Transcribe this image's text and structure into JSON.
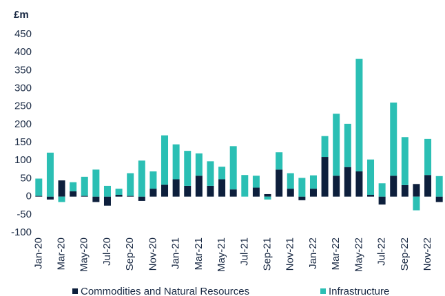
{
  "chart_data": {
    "type": "stacked_bar",
    "y_axis_label": "£m",
    "categories": [
      "Jan-20",
      null,
      "Mar-20",
      null,
      "May-20",
      null,
      "Jul-20",
      null,
      "Sep-20",
      null,
      "Nov-20",
      null,
      "Jan-21",
      null,
      "Mar-21",
      null,
      "May-21",
      null,
      "Jul-21",
      null,
      "Sep-21",
      null,
      "Nov-21",
      null,
      "Jan-22",
      null,
      "Mar-22",
      null,
      "May-22",
      null,
      "Jul-22",
      null,
      "Sep-22",
      null,
      "Nov-22",
      null
    ],
    "series": [
      {
        "name": "Commodities and Natural Resources",
        "color": "#0d1f3c",
        "values": [
          2,
          -8,
          45,
          15,
          2,
          -15,
          -25,
          5,
          2,
          -12,
          22,
          33,
          48,
          30,
          58,
          30,
          48,
          20,
          0,
          25,
          7,
          75,
          22,
          -10,
          22,
          110,
          58,
          82,
          70,
          5,
          -22,
          58,
          32,
          35,
          60,
          -15
        ]
      },
      {
        "name": "Infrastructure",
        "color": "#2bbfb4",
        "values": [
          48,
          122,
          -15,
          25,
          53,
          75,
          30,
          17,
          63,
          100,
          48,
          137,
          97,
          97,
          62,
          68,
          35,
          120,
          60,
          33,
          -8,
          48,
          43,
          52,
          37,
          58,
          172,
          120,
          312,
          98,
          37,
          203,
          133,
          -38,
          100,
          57
        ]
      }
    ],
    "ylim": [
      -100,
      450
    ],
    "yticks": [
      -100,
      -50,
      0,
      50,
      100,
      150,
      200,
      250,
      300,
      350,
      400,
      450
    ],
    "grid": false
  }
}
